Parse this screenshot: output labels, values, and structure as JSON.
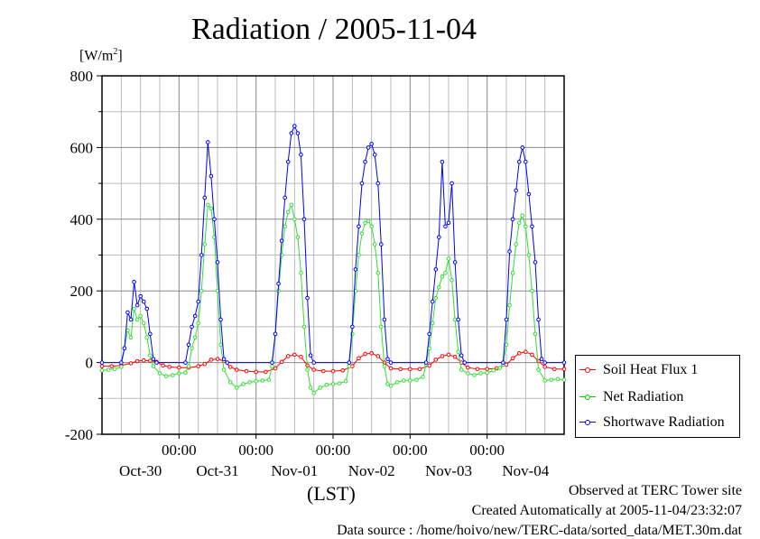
{
  "chart_data": {
    "type": "line",
    "title": "Radiation / 2005-11-04",
    "units": "[W/m2]",
    "units_base": "[W/m",
    "units_sup": "2",
    "units_close": "]",
    "xlabel": "(LST)",
    "ylim": [
      -200,
      800
    ],
    "yticks": [
      -200,
      0,
      200,
      400,
      600,
      800
    ],
    "x_time_labels": [
      "00:00",
      "00:00",
      "00:00",
      "00:00",
      "00:00"
    ],
    "x_day_labels": [
      "Oct-30",
      "Oct-31",
      "Nov-01",
      "Nov-02",
      "Nov-03",
      "Nov-04"
    ],
    "xlim_hours": [
      0,
      144
    ],
    "grid": true,
    "legend": "bottom-right, outside plot",
    "series": [
      {
        "name": "Soil Heat Flux 1",
        "color": "#ff0000",
        "points": [
          [
            0,
            -10
          ],
          [
            3,
            -10
          ],
          [
            6,
            -8
          ],
          [
            9,
            -2
          ],
          [
            11,
            4
          ],
          [
            13,
            6
          ],
          [
            15,
            5
          ],
          [
            17,
            2
          ],
          [
            19,
            -8
          ],
          [
            21,
            -12
          ],
          [
            24,
            -14
          ],
          [
            27,
            -14
          ],
          [
            30,
            -10
          ],
          [
            32,
            -4
          ],
          [
            34,
            8
          ],
          [
            36,
            10
          ],
          [
            38,
            4
          ],
          [
            40,
            -12
          ],
          [
            42,
            -20
          ],
          [
            45,
            -24
          ],
          [
            48,
            -26
          ],
          [
            51,
            -26
          ],
          [
            54,
            -16
          ],
          [
            56,
            2
          ],
          [
            58,
            18
          ],
          [
            60,
            22
          ],
          [
            62,
            16
          ],
          [
            64,
            -8
          ],
          [
            66,
            -20
          ],
          [
            69,
            -24
          ],
          [
            72,
            -24
          ],
          [
            75,
            -22
          ],
          [
            78,
            -10
          ],
          [
            80,
            12
          ],
          [
            82,
            24
          ],
          [
            84,
            26
          ],
          [
            86,
            18
          ],
          [
            88,
            0
          ],
          [
            90,
            -16
          ],
          [
            93,
            -18
          ],
          [
            96,
            -18
          ],
          [
            99,
            -18
          ],
          [
            102,
            -8
          ],
          [
            104,
            8
          ],
          [
            106,
            18
          ],
          [
            108,
            22
          ],
          [
            110,
            16
          ],
          [
            112,
            0
          ],
          [
            114,
            -14
          ],
          [
            117,
            -18
          ],
          [
            120,
            -18
          ],
          [
            123,
            -16
          ],
          [
            126,
            -6
          ],
          [
            128,
            12
          ],
          [
            130,
            26
          ],
          [
            132,
            30
          ],
          [
            134,
            22
          ],
          [
            136,
            4
          ],
          [
            138,
            -12
          ],
          [
            141,
            -18
          ],
          [
            144,
            -18
          ]
        ]
      },
      {
        "name": "Net Radiation",
        "color": "#00ff00",
        "points": [
          [
            0,
            -22
          ],
          [
            2,
            -20
          ],
          [
            4,
            -18
          ],
          [
            6,
            -12
          ],
          [
            7,
            40
          ],
          [
            8,
            90
          ],
          [
            9,
            70
          ],
          [
            10,
            150
          ],
          [
            11,
            120
          ],
          [
            12,
            130
          ],
          [
            13,
            110
          ],
          [
            14,
            70
          ],
          [
            15,
            20
          ],
          [
            16,
            -10
          ],
          [
            18,
            -30
          ],
          [
            20,
            -38
          ],
          [
            22,
            -35
          ],
          [
            24,
            -30
          ],
          [
            26,
            -28
          ],
          [
            27,
            -10
          ],
          [
            28,
            40
          ],
          [
            29,
            70
          ],
          [
            30,
            110
          ],
          [
            31,
            200
          ],
          [
            32,
            330
          ],
          [
            33,
            440
          ],
          [
            34,
            430
          ],
          [
            35,
            350
          ],
          [
            36,
            200
          ],
          [
            37,
            50
          ],
          [
            38,
            -20
          ],
          [
            40,
            -55
          ],
          [
            42,
            -70
          ],
          [
            44,
            -60
          ],
          [
            46,
            -55
          ],
          [
            48,
            -52
          ],
          [
            50,
            -50
          ],
          [
            52,
            -48
          ],
          [
            53,
            -10
          ],
          [
            54,
            80
          ],
          [
            55,
            200
          ],
          [
            56,
            300
          ],
          [
            57,
            380
          ],
          [
            58,
            420
          ],
          [
            59,
            440
          ],
          [
            60,
            400
          ],
          [
            61,
            350
          ],
          [
            62,
            250
          ],
          [
            63,
            100
          ],
          [
            64,
            -20
          ],
          [
            65,
            -70
          ],
          [
            66,
            -85
          ],
          [
            68,
            -70
          ],
          [
            70,
            -62
          ],
          [
            72,
            -60
          ],
          [
            74,
            -58
          ],
          [
            76,
            -52
          ],
          [
            77,
            -10
          ],
          [
            78,
            80
          ],
          [
            79,
            200
          ],
          [
            80,
            300
          ],
          [
            81,
            360
          ],
          [
            82,
            390
          ],
          [
            83,
            395
          ],
          [
            84,
            380
          ],
          [
            85,
            330
          ],
          [
            86,
            250
          ],
          [
            87,
            100
          ],
          [
            88,
            -10
          ],
          [
            89,
            -60
          ],
          [
            90,
            -65
          ],
          [
            92,
            -55
          ],
          [
            94,
            -50
          ],
          [
            96,
            -50
          ],
          [
            98,
            -48
          ],
          [
            100,
            -40
          ],
          [
            101,
            -5
          ],
          [
            102,
            40
          ],
          [
            103,
            110
          ],
          [
            104,
            180
          ],
          [
            105,
            210
          ],
          [
            106,
            240
          ],
          [
            107,
            250
          ],
          [
            108,
            290
          ],
          [
            109,
            230
          ],
          [
            110,
            120
          ],
          [
            111,
            30
          ],
          [
            112,
            -20
          ],
          [
            114,
            -30
          ],
          [
            116,
            -35
          ],
          [
            118,
            -30
          ],
          [
            120,
            -28
          ],
          [
            122,
            -22
          ],
          [
            124,
            -15
          ],
          [
            125,
            -5
          ],
          [
            126,
            50
          ],
          [
            127,
            160
          ],
          [
            128,
            250
          ],
          [
            129,
            330
          ],
          [
            130,
            390
          ],
          [
            131,
            410
          ],
          [
            132,
            380
          ],
          [
            133,
            300
          ],
          [
            134,
            200
          ],
          [
            135,
            80
          ],
          [
            136,
            -20
          ],
          [
            138,
            -50
          ],
          [
            140,
            -48
          ],
          [
            142,
            -46
          ],
          [
            144,
            -48
          ]
        ]
      },
      {
        "name": "Shortwave Radiation",
        "color": "#0000ff",
        "points": [
          [
            0,
            0
          ],
          [
            6,
            0
          ],
          [
            7,
            40
          ],
          [
            8,
            140
          ],
          [
            9,
            120
          ],
          [
            10,
            225
          ],
          [
            11,
            160
          ],
          [
            12,
            185
          ],
          [
            13,
            170
          ],
          [
            14,
            150
          ],
          [
            15,
            80
          ],
          [
            16,
            10
          ],
          [
            17,
            0
          ],
          [
            26,
            0
          ],
          [
            27,
            50
          ],
          [
            28,
            100
          ],
          [
            29,
            130
          ],
          [
            30,
            170
          ],
          [
            31,
            300
          ],
          [
            32,
            460
          ],
          [
            33,
            615
          ],
          [
            34,
            520
          ],
          [
            35,
            400
          ],
          [
            36,
            280
          ],
          [
            37,
            120
          ],
          [
            38,
            10
          ],
          [
            39,
            0
          ],
          [
            53,
            0
          ],
          [
            54,
            80
          ],
          [
            55,
            220
          ],
          [
            56,
            340
          ],
          [
            57,
            460
          ],
          [
            58,
            560
          ],
          [
            59,
            640
          ],
          [
            60,
            660
          ],
          [
            61,
            640
          ],
          [
            62,
            580
          ],
          [
            63,
            400
          ],
          [
            64,
            180
          ],
          [
            65,
            20
          ],
          [
            66,
            0
          ],
          [
            77,
            0
          ],
          [
            78,
            100
          ],
          [
            79,
            260
          ],
          [
            80,
            380
          ],
          [
            81,
            500
          ],
          [
            82,
            560
          ],
          [
            83,
            600
          ],
          [
            84,
            610
          ],
          [
            85,
            580
          ],
          [
            86,
            500
          ],
          [
            87,
            330
          ],
          [
            88,
            120
          ],
          [
            89,
            10
          ],
          [
            90,
            0
          ],
          [
            101,
            0
          ],
          [
            102,
            80
          ],
          [
            103,
            170
          ],
          [
            104,
            260
          ],
          [
            105,
            350
          ],
          [
            106,
            560
          ],
          [
            107,
            380
          ],
          [
            108,
            390
          ],
          [
            109,
            500
          ],
          [
            110,
            280
          ],
          [
            111,
            120
          ],
          [
            112,
            20
          ],
          [
            113,
            0
          ],
          [
            125,
            0
          ],
          [
            126,
            120
          ],
          [
            127,
            310
          ],
          [
            128,
            400
          ],
          [
            129,
            480
          ],
          [
            130,
            560
          ],
          [
            131,
            600
          ],
          [
            132,
            560
          ],
          [
            133,
            470
          ],
          [
            134,
            380
          ],
          [
            135,
            280
          ],
          [
            136,
            120
          ],
          [
            137,
            10
          ],
          [
            138,
            0
          ],
          [
            144,
            0
          ]
        ]
      }
    ]
  },
  "footer": {
    "observed": "Observed at TERC Tower site",
    "created": "Created Automatically at 2005-11-04/23:32:07",
    "source": "Data source : /home/hoivo/new/TERC-data/sorted_data/MET.30m.dat"
  },
  "colors": {
    "soil": "#ff0000",
    "net": "#00ff00",
    "short": "#0000ff"
  }
}
